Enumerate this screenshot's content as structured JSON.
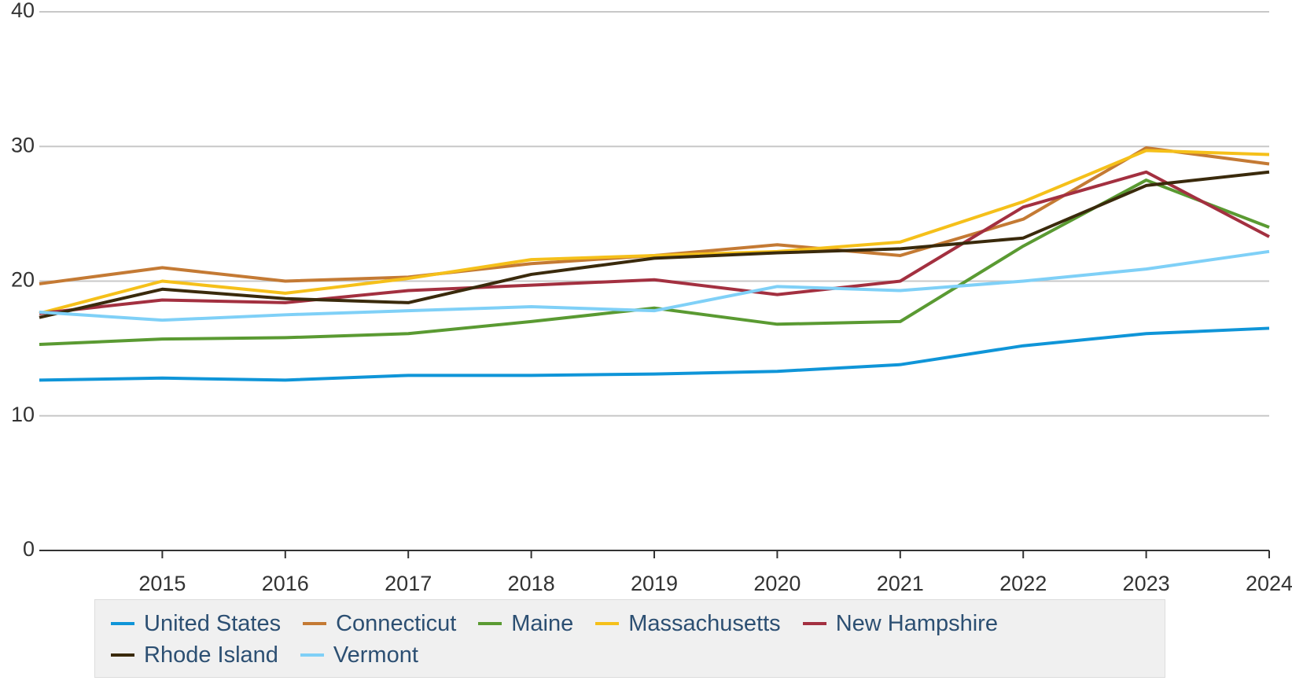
{
  "chart_data": {
    "type": "line",
    "x": [
      2014,
      2015,
      2016,
      2017,
      2018,
      2019,
      2020,
      2021,
      2022,
      2023,
      2024
    ],
    "xlim": [
      2014,
      2024
    ],
    "xticks": [
      2015,
      2016,
      2017,
      2018,
      2019,
      2020,
      2021,
      2022,
      2023,
      2024
    ],
    "ylim": [
      0,
      40
    ],
    "yticks": [
      0,
      10,
      20,
      30,
      40
    ],
    "grid": true,
    "legend": "bottom",
    "series": [
      {
        "name": "United States",
        "color": "#0f95d8",
        "values": [
          12.65,
          12.8,
          12.65,
          13.0,
          13.0,
          13.1,
          13.3,
          13.8,
          15.2,
          16.1,
          16.5
        ]
      },
      {
        "name": "Connecticut",
        "color": "#c47a34",
        "values": [
          19.8,
          21.0,
          20.0,
          20.3,
          21.3,
          21.9,
          22.7,
          21.9,
          24.6,
          29.9,
          28.7
        ]
      },
      {
        "name": "Maine",
        "color": "#5a9a32",
        "values": [
          15.3,
          15.7,
          15.8,
          16.1,
          17.0,
          18.0,
          16.8,
          17.0,
          22.6,
          27.5,
          24.0
        ]
      },
      {
        "name": "Massachusetts",
        "color": "#f5c01a",
        "values": [
          17.6,
          20.0,
          19.1,
          20.2,
          21.6,
          21.9,
          22.2,
          22.9,
          25.9,
          29.7,
          29.4
        ]
      },
      {
        "name": "New Hampshire",
        "color": "#a33040",
        "values": [
          17.6,
          18.6,
          18.4,
          19.3,
          19.7,
          20.1,
          19.0,
          20.0,
          25.5,
          28.1,
          23.3
        ]
      },
      {
        "name": "Rhode Island",
        "color": "#3a2a0c",
        "values": [
          17.3,
          19.4,
          18.7,
          18.4,
          20.5,
          21.7,
          22.1,
          22.4,
          23.2,
          27.1,
          28.1
        ]
      },
      {
        "name": "Vermont",
        "color": "#7fd0f7",
        "values": [
          17.7,
          17.1,
          17.5,
          17.8,
          18.1,
          17.8,
          19.6,
          19.3,
          20.0,
          20.9,
          22.2
        ]
      }
    ]
  }
}
